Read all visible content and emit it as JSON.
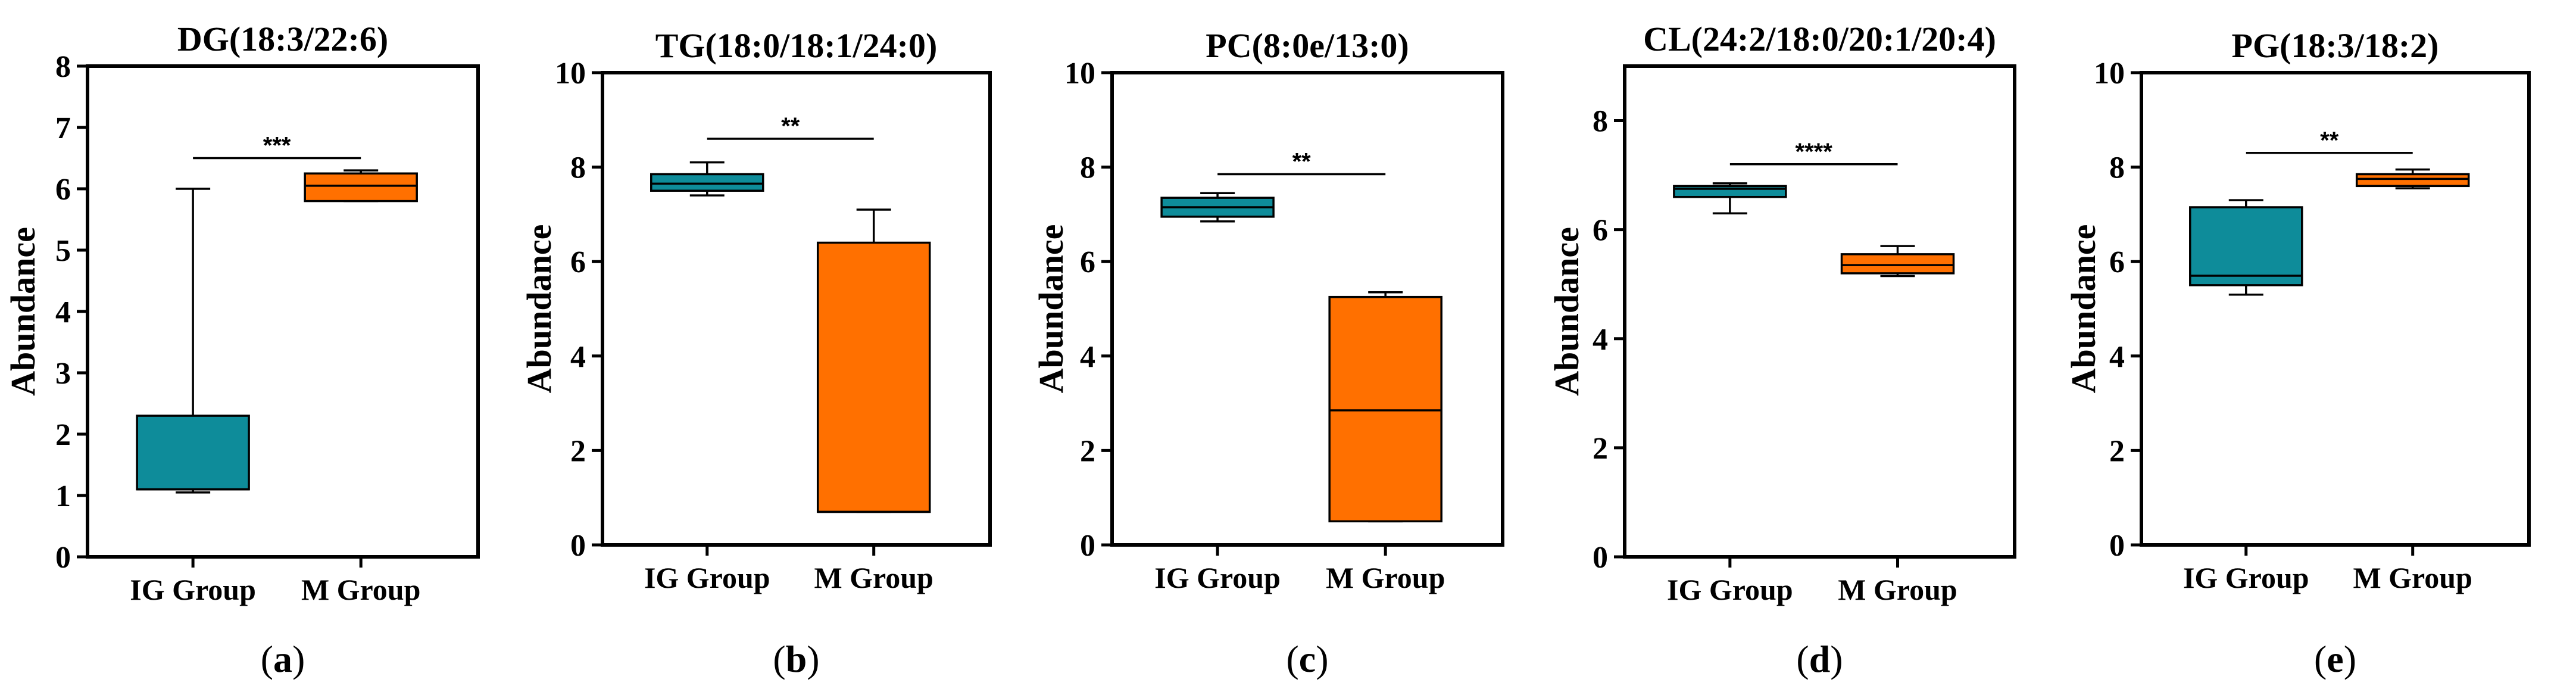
{
  "colors": {
    "ig": "#0e8c9a",
    "m": "#ff7000"
  },
  "categories": [
    "IG Group",
    "M Group"
  ],
  "chart_data": [
    {
      "type": "box",
      "label": "a",
      "title": "DG(18:3/22:6)",
      "ylabel": "Abundance",
      "ylim": [
        0,
        8
      ],
      "yticks": [
        0,
        1,
        2,
        3,
        4,
        5,
        6,
        7,
        8
      ],
      "categories": [
        "IG Group",
        "M Group"
      ],
      "series": [
        {
          "name": "IG Group",
          "min": 1.05,
          "q1": 1.1,
          "median": 1.1,
          "q3": 2.3,
          "max": 6.0
        },
        {
          "name": "M Group",
          "min": 5.8,
          "q1": 5.8,
          "median": 6.05,
          "q3": 6.25,
          "max": 6.3
        }
      ],
      "significance": {
        "text": "***",
        "y": 6.5
      }
    },
    {
      "type": "box",
      "label": "b",
      "title": "TG(18:0/18:1/24:0)",
      "ylabel": "Abundance",
      "ylim": [
        0,
        10
      ],
      "yticks": [
        0,
        2,
        4,
        6,
        8,
        10
      ],
      "categories": [
        "IG Group",
        "M Group"
      ],
      "series": [
        {
          "name": "IG Group",
          "min": 7.4,
          "q1": 7.5,
          "median": 7.65,
          "q3": 7.85,
          "max": 8.1
        },
        {
          "name": "M Group",
          "min": 0.7,
          "q1": 0.7,
          "median": 0.7,
          "q3": 6.4,
          "max": 7.1
        }
      ],
      "significance": {
        "text": "**",
        "y": 8.6
      }
    },
    {
      "type": "box",
      "label": "c",
      "title": "PC(8:0e/13:0)",
      "ylabel": "Abundance",
      "ylim": [
        0,
        10
      ],
      "yticks": [
        0,
        2,
        4,
        6,
        8,
        10
      ],
      "categories": [
        "IG Group",
        "M Group"
      ],
      "series": [
        {
          "name": "IG Group",
          "min": 6.85,
          "q1": 6.95,
          "median": 7.15,
          "q3": 7.35,
          "max": 7.45
        },
        {
          "name": "M Group",
          "min": 0.5,
          "q1": 0.5,
          "median": 2.85,
          "q3": 5.25,
          "max": 5.35
        }
      ],
      "significance": {
        "text": "**",
        "y": 7.85
      }
    },
    {
      "type": "box",
      "label": "d",
      "title": "CL(24:2/18:0/20:1/20:4)",
      "ylabel": "Abundance",
      "ylim": [
        0,
        9
      ],
      "yticks": [
        0,
        2,
        4,
        6,
        8
      ],
      "categories": [
        "IG Group",
        "M Group"
      ],
      "series": [
        {
          "name": "IG Group",
          "min": 6.3,
          "q1": 6.6,
          "median": 6.75,
          "q3": 6.8,
          "max": 6.85
        },
        {
          "name": "M Group",
          "min": 5.15,
          "q1": 5.2,
          "median": 5.35,
          "q3": 5.55,
          "max": 5.7
        }
      ],
      "significance": {
        "text": "****",
        "y": 7.2
      }
    },
    {
      "type": "box",
      "label": "e",
      "title": "PG(18:3/18:2)",
      "ylabel": "Abundance",
      "ylim": [
        0,
        10
      ],
      "yticks": [
        0,
        2,
        4,
        6,
        8,
        10
      ],
      "categories": [
        "IG Group",
        "M Group"
      ],
      "series": [
        {
          "name": "IG Group",
          "min": 5.3,
          "q1": 5.5,
          "median": 5.7,
          "q3": 7.15,
          "max": 7.3
        },
        {
          "name": "M Group",
          "min": 7.55,
          "q1": 7.6,
          "median": 7.75,
          "q3": 7.85,
          "max": 7.95
        }
      ],
      "significance": {
        "text": "**",
        "y": 8.3
      }
    }
  ]
}
